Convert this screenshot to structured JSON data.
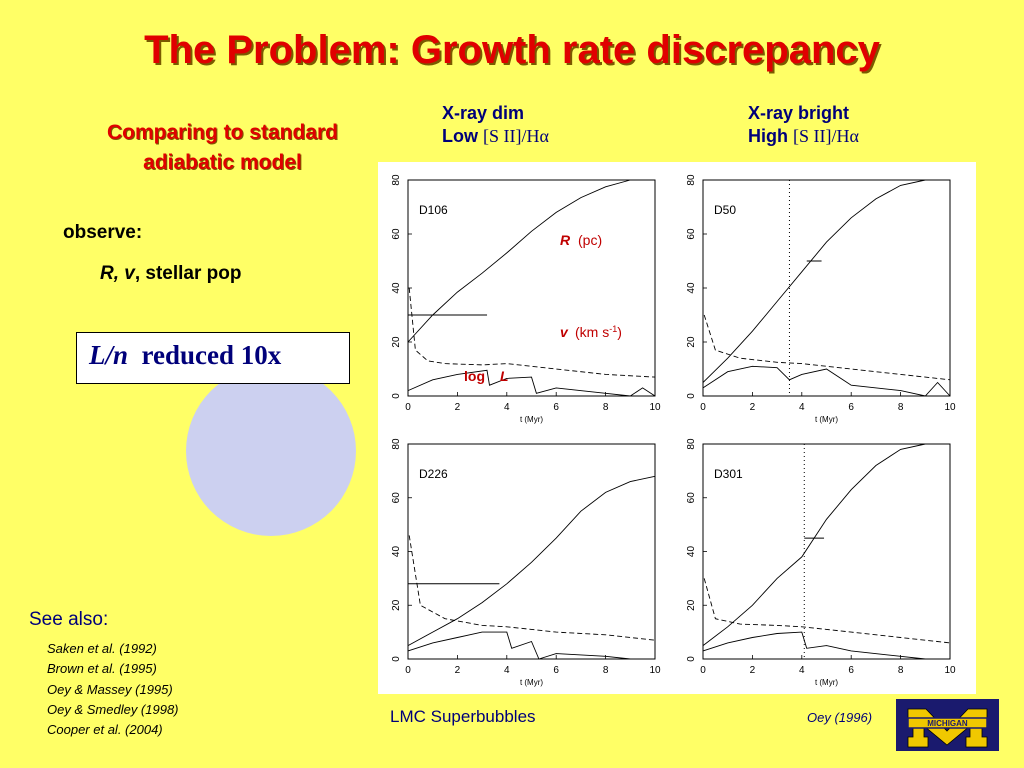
{
  "title": "The Problem:  Growth rate discrepancy",
  "subtitle": "Comparing to standard adiabatic model",
  "columns": [
    {
      "line1": "X-ray  dim",
      "level": "Low",
      "ratio": "[S II]/Hα"
    },
    {
      "line1": "X-ray  bright",
      "level": "High",
      "ratio": "[S II]/Hα"
    }
  ],
  "observe": {
    "label": "observe:",
    "italic": "R, v",
    "rest": ", stellar pop"
  },
  "box": {
    "italic": "L/n",
    "rest": "reduced 10x"
  },
  "see_also": {
    "label": "See also:",
    "refs": [
      "Saken  et al. (1992)",
      "Brown  et al. (1995)",
      "Oey & Massey (1995)",
      "Oey & Smedley (1998)",
      "Cooper et al. (2004)"
    ]
  },
  "annotations": {
    "R": "R",
    "R_unit": "(pc)",
    "v": "v",
    "v_unit": "(km s-1)",
    "logL_log": "log",
    "logL_L": "L"
  },
  "caption": "LMC  Superbubbles",
  "citation": "Oey (1996)",
  "logo_text": "MICHIGAN",
  "colors": {
    "background": "#ffff66",
    "title": "#e00000",
    "text_blue": "#00007a",
    "circle": "#ccd0f0",
    "logo_blue": "#1a1a6e",
    "logo_maize": "#f0c800"
  },
  "chart_data": [
    {
      "type": "line",
      "label": "D106",
      "xlabel": "t (Myr)",
      "xlim": [
        0,
        10
      ],
      "ylim": [
        0,
        80
      ],
      "xticks": [
        0,
        2,
        4,
        6,
        8,
        10
      ],
      "yticks": [
        0,
        20,
        40,
        60,
        80
      ],
      "series": [
        {
          "style": "solid",
          "x": [
            0,
            1,
            2,
            3,
            4,
            5,
            6,
            7,
            8,
            9
          ],
          "y": [
            20,
            30,
            38.5,
            45.5,
            53,
            61,
            68,
            73.5,
            77.5,
            80
          ]
        },
        {
          "style": "dashed",
          "x": [
            0.05,
            0.3,
            0.8,
            1.5,
            3,
            4,
            5,
            6,
            8,
            10
          ],
          "y": [
            40,
            17,
            13,
            12,
            11.5,
            12,
            11,
            10,
            8,
            7
          ]
        },
        {
          "style": "solid",
          "x": [
            0,
            1,
            2,
            3.2,
            3.3,
            4,
            5,
            5.2,
            6,
            8,
            9,
            9.5,
            10
          ],
          "y": [
            2,
            6,
            8,
            9.5,
            4,
            6.5,
            7,
            1,
            3,
            1,
            0,
            3,
            -4
          ]
        }
      ],
      "data_observed": {
        "x": [
          0,
          3.2
        ],
        "y": 30
      }
    },
    {
      "type": "line",
      "label": "D50",
      "xlabel": "t (Myr)",
      "xlim": [
        0,
        10
      ],
      "ylim": [
        0,
        80
      ],
      "xticks": [
        0,
        2,
        4,
        6,
        8,
        10
      ],
      "yticks": [
        0,
        20,
        40,
        60,
        80
      ],
      "series": [
        {
          "style": "solid",
          "x": [
            0,
            1,
            2,
            3,
            4,
            5,
            6,
            7,
            8,
            9
          ],
          "y": [
            5,
            14,
            24,
            35,
            46,
            57,
            66,
            73,
            78,
            80
          ]
        },
        {
          "style": "dashed",
          "x": [
            0.05,
            0.5,
            1.5,
            3,
            4,
            5,
            6,
            8,
            10
          ],
          "y": [
            30,
            17,
            14,
            12.5,
            12,
            11,
            10,
            8,
            6
          ]
        },
        {
          "style": "solid",
          "x": [
            0,
            1,
            2,
            3,
            3.5,
            4,
            5,
            6,
            8,
            9,
            9.5,
            10
          ],
          "y": [
            3,
            9,
            11,
            10.5,
            6,
            8,
            10,
            4,
            2,
            0,
            5,
            -4
          ]
        }
      ],
      "vline_dotted": 3.5,
      "data_observed": {
        "x": [
          4.2,
          4.8
        ],
        "y": 50
      }
    },
    {
      "type": "line",
      "label": "D226",
      "xlabel": "t (Myr)",
      "xlim": [
        0,
        10
      ],
      "ylim": [
        0,
        80
      ],
      "xticks": [
        0,
        2,
        4,
        6,
        8,
        10
      ],
      "yticks": [
        0,
        20,
        40,
        60,
        80
      ],
      "series": [
        {
          "style": "solid",
          "x": [
            0,
            1,
            2,
            3,
            4,
            5,
            6,
            7,
            8,
            9,
            10
          ],
          "y": [
            5,
            10,
            15,
            21,
            28,
            36,
            45,
            55,
            62,
            66,
            68
          ]
        },
        {
          "style": "dashed",
          "x": [
            0.05,
            0.5,
            1.5,
            3,
            4,
            5,
            6,
            8,
            10
          ],
          "y": [
            46,
            20,
            15,
            12.5,
            12,
            11,
            10,
            9,
            7
          ]
        },
        {
          "style": "solid",
          "x": [
            0,
            1,
            2,
            3,
            4,
            4.2,
            5,
            5.3,
            6,
            8,
            9,
            10
          ],
          "y": [
            3,
            6,
            8,
            10,
            10,
            4,
            6.5,
            0,
            2,
            1,
            0,
            -3
          ]
        }
      ],
      "data_observed": {
        "x": [
          0,
          3.7
        ],
        "y": 28
      }
    },
    {
      "type": "line",
      "label": "D301",
      "xlabel": "t (Myr)",
      "xlim": [
        0,
        10
      ],
      "ylim": [
        0,
        80
      ],
      "xticks": [
        0,
        2,
        4,
        6,
        8,
        10
      ],
      "yticks": [
        0,
        20,
        40,
        60,
        80
      ],
      "series": [
        {
          "style": "solid",
          "x": [
            0,
            1,
            2,
            3,
            4,
            5,
            6,
            7,
            8,
            9
          ],
          "y": [
            5,
            12,
            20,
            30,
            38,
            52,
            63,
            72,
            78,
            80
          ]
        },
        {
          "style": "dashed",
          "x": [
            0.05,
            0.5,
            1.5,
            3,
            4,
            5,
            6,
            8,
            10
          ],
          "y": [
            30,
            15,
            13,
            12.5,
            12,
            11,
            10,
            8,
            6
          ]
        },
        {
          "style": "solid",
          "x": [
            0,
            1,
            2,
            3,
            4,
            4.2,
            5,
            6,
            8,
            9,
            10
          ],
          "y": [
            3,
            6,
            8,
            9.5,
            10,
            4,
            5,
            3,
            1,
            0,
            -3
          ]
        }
      ],
      "vline_dotted": 4.1,
      "data_observed": {
        "x": [
          4.1,
          4.9
        ],
        "y": 45
      }
    }
  ]
}
